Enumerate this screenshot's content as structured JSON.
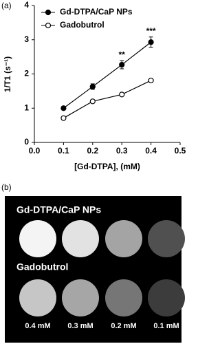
{
  "chart_data": {
    "type": "line",
    "panel_label": "(a)",
    "x_label": "[Gd-DTPA], (mM)",
    "y_label": "1/T1 (s⁻¹)",
    "x": [
      0.1,
      0.2,
      0.3,
      0.4
    ],
    "series": [
      {
        "name": "Gd-DTPA/CaP NPs",
        "color": "#000000",
        "marker": "filled",
        "values": [
          1.0,
          1.63,
          2.27,
          2.93
        ],
        "errors": [
          0.05,
          0.08,
          0.12,
          0.15
        ]
      },
      {
        "name": "Gadobutrol",
        "color": "#000000",
        "marker": "open",
        "values": [
          0.71,
          1.2,
          1.4,
          1.81
        ],
        "errors": [
          0.02,
          0.02,
          0.03,
          0.03
        ]
      }
    ],
    "annotations": [
      {
        "text": "**",
        "x": 0.3
      },
      {
        "text": "***",
        "x": 0.4
      }
    ],
    "xlim": [
      0,
      0.5
    ],
    "xticks": [
      {
        "value": 0,
        "label": "0.0"
      },
      0.1,
      0.2,
      0.3,
      0.4,
      0.5
    ],
    "ylim": [
      0,
      4
    ],
    "yticks": [
      0,
      1,
      2,
      3,
      4
    ],
    "grid": false,
    "legend": "upper left"
  },
  "image": {
    "panel_label": "(b)",
    "rows": [
      "Gd-DTPA/CaP NPs",
      "Gadobutrol"
    ],
    "concentrations": [
      "0.4 mM",
      "0.3 mM",
      "0.2 mM",
      "0.1 mM"
    ]
  }
}
